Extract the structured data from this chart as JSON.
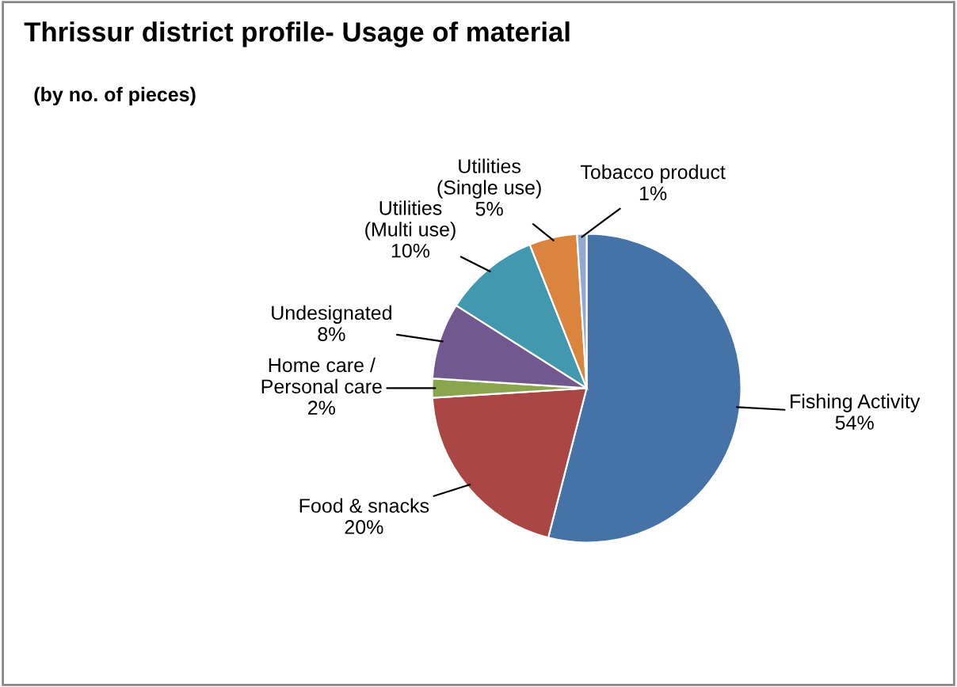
{
  "chart_data": {
    "type": "pie",
    "title": "Thrissur district profile- Usage of material",
    "subtitle": "(by no. of pieces)",
    "categories": [
      "Fishing Activity",
      "Food & snacks",
      "Home care /\nPersonal care",
      "Undesignated",
      "Utilities\n(Multi use)",
      "Utilities\n(Single use)",
      "Tobacco product"
    ],
    "values": [
      54,
      20,
      2,
      8,
      10,
      5,
      1
    ],
    "colors": [
      "#4572a7",
      "#aa4643",
      "#89a54e",
      "#71588f",
      "#4198af",
      "#db843d",
      "#93a9cf"
    ],
    "value_labels": [
      "54%",
      "20%",
      "2%",
      "8%",
      "10%",
      "5%",
      "1%"
    ],
    "legend": false
  }
}
